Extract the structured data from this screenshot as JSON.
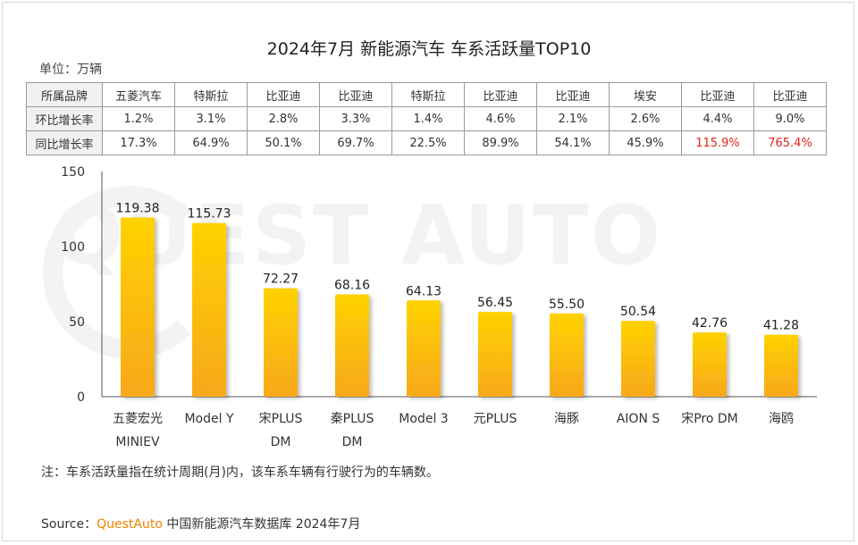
{
  "title": "2024年7月 新能源汽车 车系活跃量TOP10",
  "unit": "单位：万辆",
  "table": {
    "rows": [
      {
        "head": "所属品牌",
        "cells": [
          "五菱汽车",
          "特斯拉",
          "比亚迪",
          "比亚迪",
          "特斯拉",
          "比亚迪",
          "比亚迪",
          "埃安",
          "比亚迪",
          "比亚迪"
        ]
      },
      {
        "head": "环比增长率",
        "cells": [
          "1.2%",
          "3.1%",
          "2.8%",
          "3.3%",
          "1.4%",
          "4.6%",
          "2.1%",
          "2.6%",
          "4.4%",
          "9.0%"
        ]
      },
      {
        "head": "同比增长率",
        "cells": [
          "17.3%",
          "64.9%",
          "50.1%",
          "69.7%",
          "22.5%",
          "89.9%",
          "54.1%",
          "45.9%",
          "115.9%",
          "765.4%"
        ]
      }
    ]
  },
  "watermark": "QUEST AUTO",
  "chart_data": {
    "type": "bar",
    "categories": [
      "五菱宏光\nMINIEV",
      "Model Y",
      "宋PLUS\nDM",
      "秦PLUS\nDM",
      "Model 3",
      "元PLUS",
      "海豚",
      "AION S",
      "宋Pro DM",
      "海鸥"
    ],
    "values": [
      119.38,
      115.73,
      72.27,
      68.16,
      64.13,
      56.45,
      55.5,
      50.54,
      42.76,
      41.28
    ],
    "value_labels": [
      "119.38",
      "115.73",
      "72.27",
      "68.16",
      "64.13",
      "56.45",
      "55.50",
      "50.54",
      "42.76",
      "41.28"
    ],
    "ylim": [
      0,
      150
    ],
    "yticks": [
      0,
      50,
      100,
      150
    ],
    "bar_color_top": "#ffd200",
    "bar_color_bottom": "#f7a81b"
  },
  "note": "注：车系活跃量指在统计周期(月)内，该车系车辆有行驶行为的车辆数。",
  "source": {
    "prefix": "Source：",
    "brand": "QuestAuto",
    "text": " 中国新能源汽车数据库 2024年7月"
  },
  "colors": {
    "highlight_red": "#e2231a",
    "brand_orange": "#f08300"
  }
}
